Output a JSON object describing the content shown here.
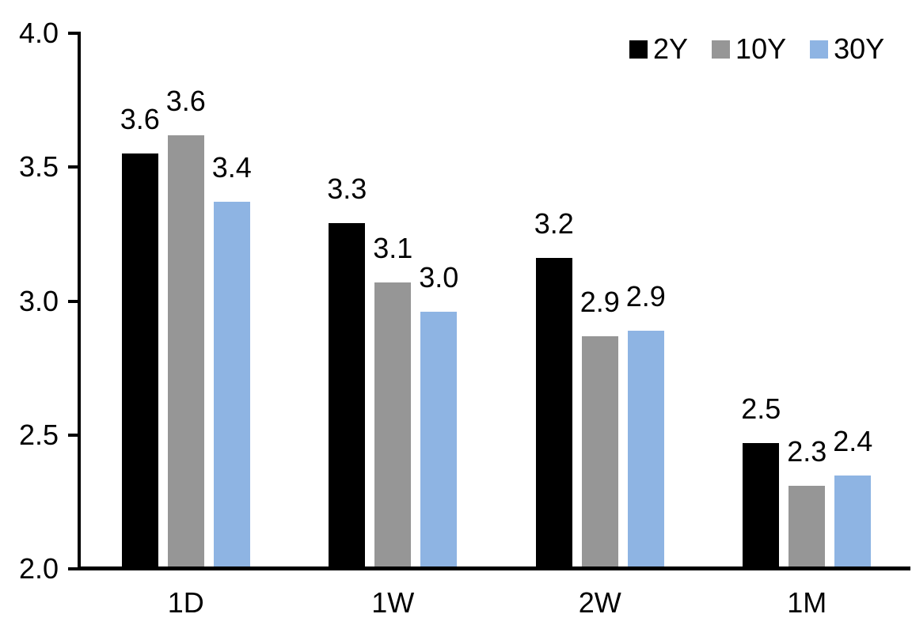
{
  "chart_data": {
    "type": "bar",
    "title": "",
    "categories": [
      "1D",
      "1W",
      "2W",
      "1M"
    ],
    "series": [
      {
        "name": "2Y",
        "color": "#000000",
        "values": [
          3.55,
          3.29,
          3.16,
          2.47
        ],
        "labels": [
          "3.6",
          "3.3",
          "3.2",
          "2.5"
        ]
      },
      {
        "name": "10Y",
        "color": "#969696",
        "values": [
          3.62,
          3.07,
          2.87,
          2.31
        ],
        "labels": [
          "3.6",
          "3.1",
          "2.9",
          "2.3"
        ]
      },
      {
        "name": "30Y",
        "color": "#8EB4E3",
        "values": [
          3.37,
          2.96,
          2.89,
          2.35
        ],
        "labels": [
          "3.4",
          "3.0",
          "2.9",
          "2.4"
        ]
      }
    ],
    "xlabel": "",
    "ylabel": "",
    "ylim": [
      2.0,
      4.0
    ],
    "yticks": {
      "values": [
        4.0,
        3.5,
        3.0,
        2.5,
        2.0
      ],
      "labels": [
        "4.0",
        "3.5",
        "3.0",
        "2.5",
        "2.0"
      ]
    },
    "legend": {
      "position": "top-right",
      "entries": [
        "2Y",
        "10Y",
        "30Y"
      ]
    },
    "grid": false,
    "axis_color": "#000000",
    "data_label_color": "#000000"
  }
}
